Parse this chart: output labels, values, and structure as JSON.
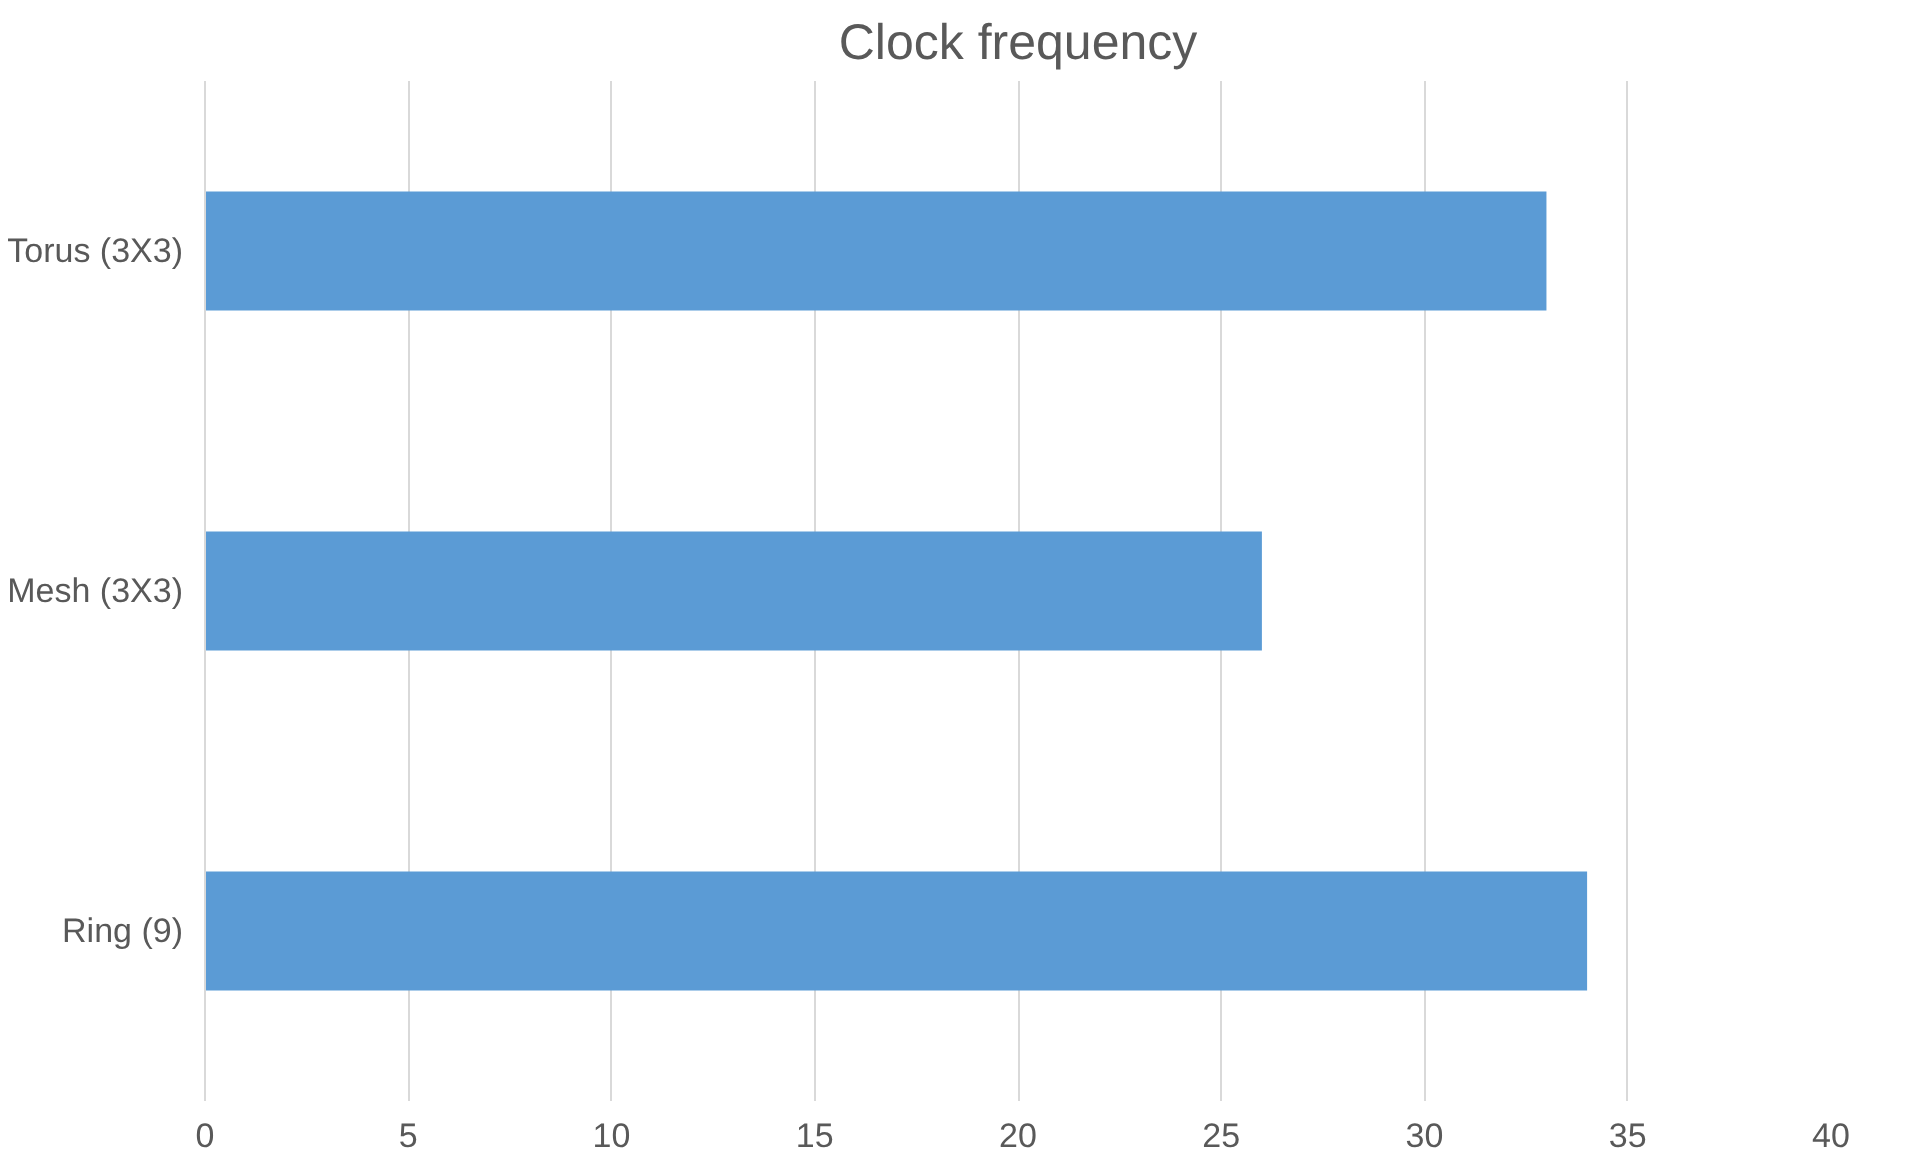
{
  "chart_data": {
    "type": "bar",
    "orientation": "horizontal",
    "title": "Clock frequency",
    "categories": [
      "Torus (3X3)",
      "Mesh (3X3)",
      "Ring (9)"
    ],
    "values": [
      33,
      26,
      34
    ],
    "color": "#5b9bd5",
    "xlim": [
      0,
      40
    ],
    "xticks": [
      0,
      5,
      10,
      15,
      20,
      25,
      30,
      35,
      40
    ],
    "grid": "x"
  }
}
